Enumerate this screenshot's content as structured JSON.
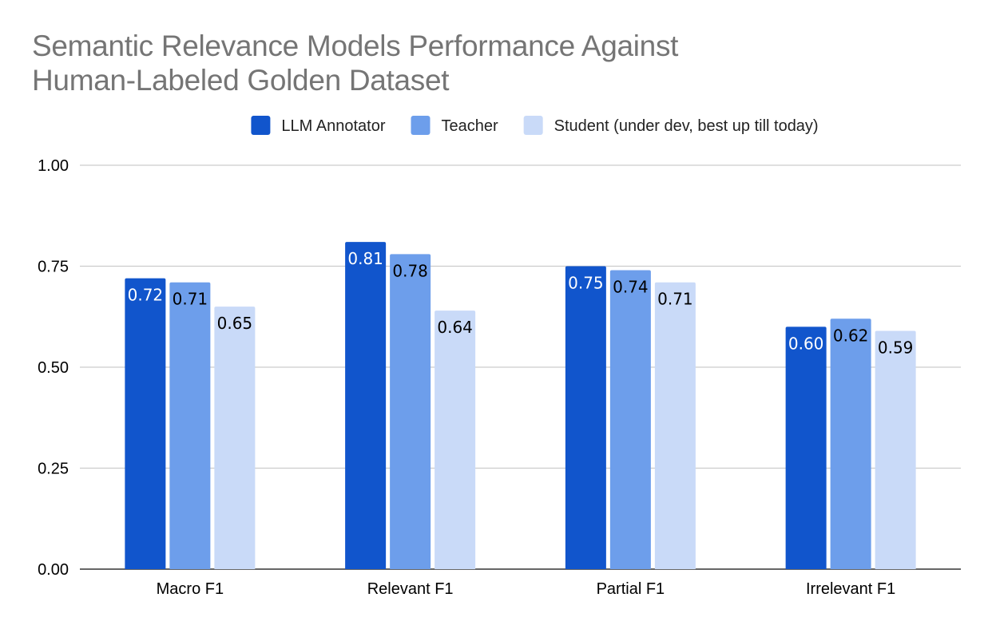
{
  "chart_data": {
    "type": "bar",
    "title_lines": [
      "Semantic Relevance Models Performance Against",
      "Human-Labeled Golden Dataset"
    ],
    "categories": [
      "Macro F1",
      "Relevant F1",
      "Partial F1",
      "Irrelevant F1"
    ],
    "series": [
      {
        "name": "LLM Annotator",
        "color": "#1155cc",
        "label_color": "#ffffff",
        "values": [
          0.72,
          0.81,
          0.75,
          0.6
        ],
        "labels": [
          "0.72",
          "0.81",
          "0.75",
          "0.60"
        ]
      },
      {
        "name": "Teacher",
        "color": "#6d9eeb",
        "label_color": "#000000",
        "values": [
          0.71,
          0.78,
          0.74,
          0.62
        ],
        "labels": [
          "0.71",
          "0.78",
          "0.74",
          "0.62"
        ]
      },
      {
        "name": "Student (under dev, best up till today)",
        "color": "#c9daf8",
        "label_color": "#000000",
        "values": [
          0.65,
          0.64,
          0.71,
          0.59
        ],
        "labels": [
          "0.65",
          "0.64",
          "0.71",
          "0.59"
        ]
      }
    ],
    "y_ticks": [
      "0.00",
      "0.25",
      "0.50",
      "0.75",
      "1.00"
    ],
    "ylim": [
      0,
      1
    ],
    "grid": true,
    "legend_position": "top"
  }
}
